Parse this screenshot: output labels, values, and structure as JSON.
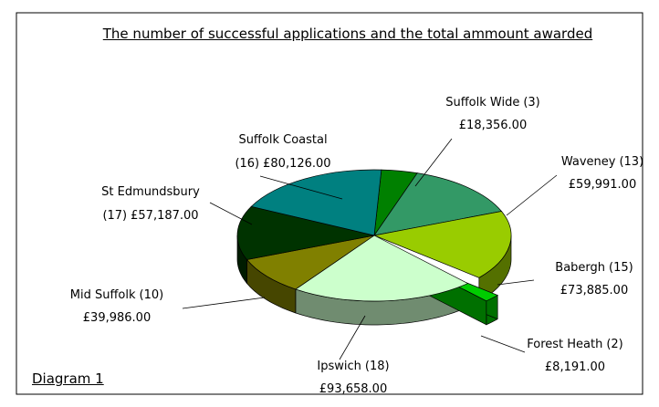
{
  "chart_data": {
    "type": "pie",
    "title": "The number of successful applications and the total ammount awarded",
    "footer": "Diagram 1",
    "categories": [
      "Suffolk Wide",
      "Waveney",
      "Babergh",
      "Forest Heath",
      "Ipswich",
      "Mid Suffolk",
      "St Edmundsbury",
      "Suffolk Coastal"
    ],
    "counts": [
      3,
      13,
      15,
      2,
      18,
      10,
      17,
      16
    ],
    "count_labels": [
      "(3)",
      "(13)",
      "(15)",
      "(2)",
      "(18)",
      "(10)",
      "(17)",
      "(16)"
    ],
    "values": [
      18356,
      59991,
      73885,
      8191,
      93658,
      39986,
      57187,
      80126
    ],
    "value_labels": [
      "£18,356.00",
      "£59,991.00",
      "£73,885.00",
      "£8,191.00",
      "£93,658.00",
      "£39,986.00",
      "£57,187.00",
      "£80,126.00"
    ],
    "colors": [
      "#008000",
      "#339966",
      "#99cc00",
      "#00cc00",
      "#ccffcc",
      "#808000",
      "#003300",
      "#008080"
    ],
    "exploded": [
      false,
      false,
      false,
      true,
      false,
      false,
      false,
      false
    ]
  }
}
